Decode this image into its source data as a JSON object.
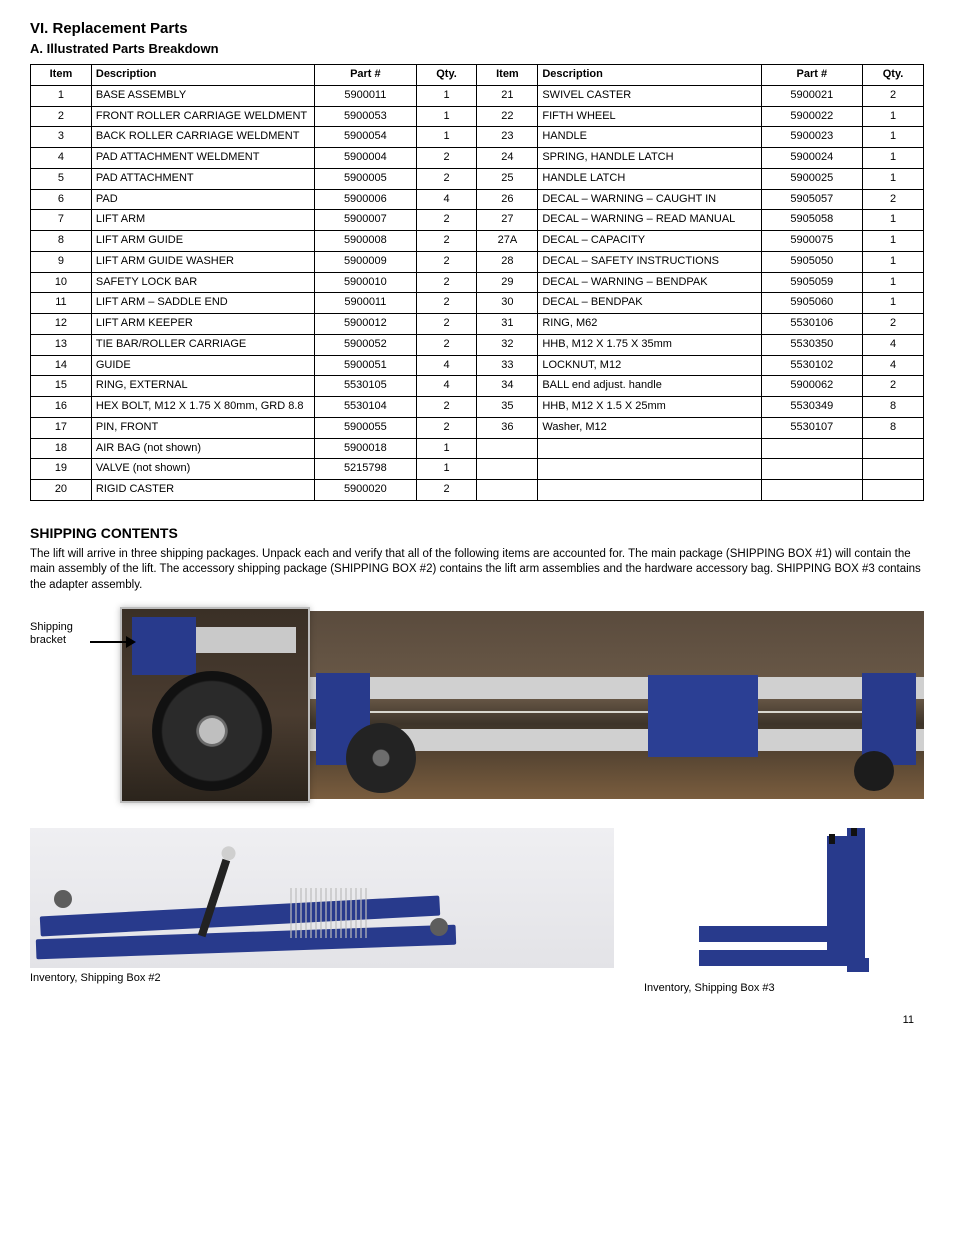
{
  "page": {
    "title": "VI. Replacement Parts",
    "section": "A. Illustrated Parts Breakdown",
    "pageNumber": "11"
  },
  "table": {
    "headers": [
      "Item",
      "Description",
      "Part #",
      "Qty.",
      "Item",
      "Description",
      "Part #",
      "Qty."
    ],
    "rows": [
      [
        "1",
        "BASE ASSEMBLY",
        "5900011",
        "1",
        "21",
        "SWIVEL CASTER",
        "5900021",
        "2"
      ],
      [
        "2",
        "FRONT ROLLER CARRIAGE WELDMENT",
        "5900053",
        "1",
        "22",
        "FIFTH WHEEL",
        "5900022",
        "1"
      ],
      [
        "3",
        "BACK ROLLER CARRIAGE WELDMENT",
        "5900054",
        "1",
        "23",
        "HANDLE",
        "5900023",
        "1"
      ],
      [
        "4",
        "PAD ATTACHMENT WELDMENT",
        "5900004",
        "2",
        "24",
        "SPRING, HANDLE LATCH",
        "5900024",
        "1"
      ],
      [
        "5",
        "PAD ATTACHMENT",
        "5900005",
        "2",
        "25",
        "HANDLE LATCH",
        "5900025",
        "1"
      ],
      [
        "6",
        "PAD",
        "5900006",
        "4",
        "26",
        "DECAL – WARNING – CAUGHT IN",
        "5905057",
        "2"
      ],
      [
        "7",
        "LIFT ARM",
        "5900007",
        "2",
        "27",
        "DECAL – WARNING – READ MANUAL",
        "5905058",
        "1"
      ],
      [
        "8",
        "LIFT ARM GUIDE",
        "5900008",
        "2",
        "27A",
        "DECAL – CAPACITY",
        "5900075",
        "1"
      ],
      [
        "9",
        "LIFT ARM GUIDE WASHER",
        "5900009",
        "2",
        "28",
        "DECAL – SAFETY INSTRUCTIONS",
        "5905050",
        "1"
      ],
      [
        "10",
        "SAFETY LOCK BAR",
        "5900010",
        "2",
        "29",
        "DECAL – WARNING – BENDPAK",
        "5905059",
        "1"
      ],
      [
        "11",
        "LIFT ARM – SADDLE END",
        "5900011",
        "2",
        "30",
        "DECAL – BENDPAK",
        "5905060",
        "1"
      ],
      [
        "12",
        "LIFT ARM KEEPER",
        "5900012",
        "2",
        "31",
        "RING, M62",
        "5530106",
        "2"
      ],
      [
        "13",
        "TIE BAR/ROLLER CARRIAGE",
        "5900052",
        "2",
        "32",
        "HHB, M12 X 1.75 X 35mm",
        "5530350",
        "4"
      ],
      [
        "14",
        "GUIDE",
        "5900051",
        "4",
        "33",
        "LOCKNUT, M12",
        "5530102",
        "4"
      ],
      [
        "15",
        "RING, EXTERNAL",
        "5530105",
        "4",
        "34",
        "BALL end adjust. handle",
        "5900062",
        "2"
      ],
      [
        "16",
        "HEX BOLT, M12 X 1.75 X 80mm, GRD 8.8",
        "5530104",
        "2",
        "35",
        "HHB, M12 X 1.5 X 25mm",
        "5530349",
        "8"
      ],
      [
        "17",
        "PIN, FRONT",
        "5900055",
        "2",
        "36",
        "Washer, M12",
        "5530107",
        "8"
      ],
      [
        "18",
        "AIR BAG (not shown)",
        "5900018",
        "1",
        "",
        "",
        "",
        ""
      ],
      [
        "19",
        "VALVE (not shown)",
        "5215798",
        "1",
        "",
        "",
        "",
        ""
      ],
      [
        "20",
        "RIGID CASTER",
        "5900020",
        "2",
        "",
        "",
        "",
        ""
      ]
    ]
  },
  "shipping": {
    "title": "SHIPPING CONTENTS",
    "body": "The lift will arrive in three shipping packages. Unpack each and verify that all of the following items are accounted for. The main package (SHIPPING BOX #1) will contain the main assembly of the lift. The accessory shipping package (SHIPPING BOX #2) contains the lift arm assemblies and the hardware accessory bag. SHIPPING BOX #3 contains the adapter assembly.",
    "callout": "Shipping bracket",
    "box2Caption": "Inventory, Shipping Box #2",
    "box3Caption": "Inventory, Shipping Box #3"
  },
  "colors": {
    "brandBlue": "#283a8c",
    "metal": "#c9c9c9"
  }
}
